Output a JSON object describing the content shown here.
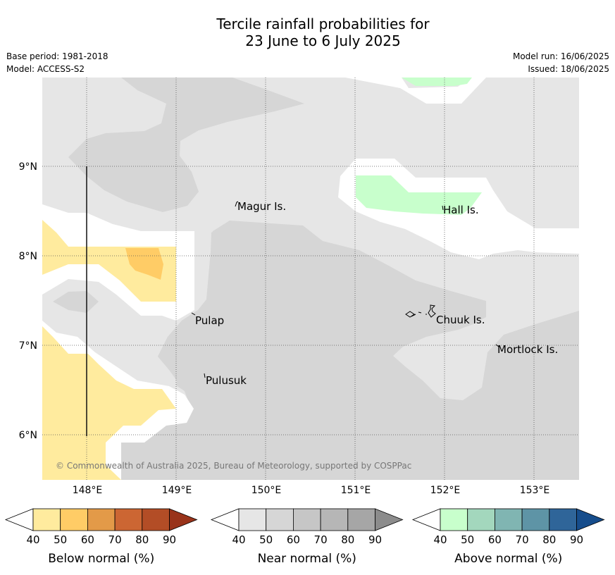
{
  "header": {
    "title_line1": "Tercile rainfall probabilities for",
    "title_line2": "23 June to 6 July 2025",
    "base_period": "Base period: 1981-2018",
    "model": "Model: ACCESS-S2",
    "model_run": "Model run: 16/06/2025",
    "issued": "Issued: 18/06/2025"
  },
  "map": {
    "lon_ticks": [
      "148°E",
      "149°E",
      "150°E",
      "151°E",
      "152°E",
      "153°E"
    ],
    "lat_ticks": [
      "9°N",
      "8°N",
      "7°N",
      "6°N"
    ],
    "places": [
      {
        "name": "Magur Is."
      },
      {
        "name": "Hall Is."
      },
      {
        "name": "Pulap"
      },
      {
        "name": "Chuuk Is."
      },
      {
        "name": "Mortlock Is."
      },
      {
        "name": "Pulusuk"
      }
    ],
    "copyright": "© Commonwealth of Australia 2025, Bureau of Meteorology, supported by COSPPac"
  },
  "legends": [
    {
      "label": "Below normal (%)",
      "ticks": [
        "40",
        "50",
        "60",
        "70",
        "80",
        "90"
      ],
      "colors": [
        "#ffeb9e",
        "#ffcc66",
        "#e39a48",
        "#cc6633",
        "#b34d26",
        "#99331a"
      ]
    },
    {
      "label": "Near normal (%)",
      "ticks": [
        "40",
        "50",
        "60",
        "70",
        "80",
        "90"
      ],
      "colors": [
        "#e6e6e6",
        "#d6d6d6",
        "#c6c6c6",
        "#b6b6b6",
        "#a6a6a6",
        "#8c8c8c"
      ]
    },
    {
      "label": "Above normal (%)",
      "ticks": [
        "40",
        "50",
        "60",
        "70",
        "80",
        "90"
      ],
      "colors": [
        "#c8ffcc",
        "#a3d7bd",
        "#80b5b2",
        "#5e94a6",
        "#2f6599",
        "#164d8c"
      ]
    }
  ]
}
